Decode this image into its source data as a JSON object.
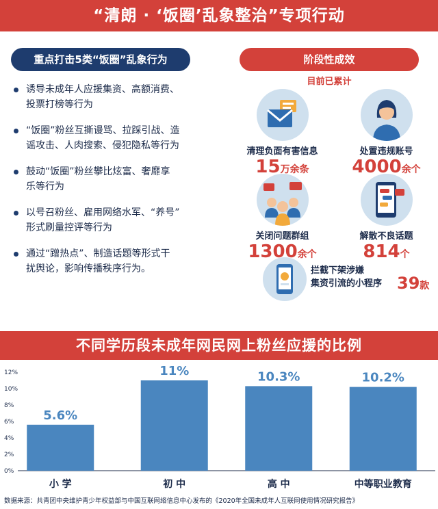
{
  "header": {
    "title": "“清朗 · ‘饭圈’乱象整治”专项行动"
  },
  "left": {
    "heading": "重点打击5类“饭圈”乱象行为",
    "items": [
      {
        "line1": "诱导未成年人应援集资、高额消费、",
        "line2": "投票打榜等行为"
      },
      {
        "line1": "“饭圈”粉丝互撕谩骂、拉踩引战、造",
        "line2": "谣攻击、人肉搜索、侵犯隐私等行为"
      },
      {
        "line1": "鼓动“饭圈”粉丝攀比炫富、奢靡享",
        "line2": "乐等行为"
      },
      {
        "line1": "以号召粉丝、雇用网络水军、“养号”",
        "line2": "形式刷量控评等行为"
      },
      {
        "line1": "通过“蹭热点”、制造话题等形式干",
        "line2": "扰舆论，影响传播秩序行为。"
      }
    ]
  },
  "right": {
    "heading": "阶段性成效",
    "subheading": "目前已累计",
    "stats": [
      {
        "label": "清理负面有害信息",
        "value": "15",
        "unit": "万余条",
        "icon": "message-envelope-icon"
      },
      {
        "label": "处置违规账号",
        "value": "4000",
        "unit": "余个",
        "icon": "person-avatar-icon"
      },
      {
        "label": "关闭问题群组",
        "value": "1300",
        "unit": "余个",
        "icon": "group-chat-icon"
      },
      {
        "label": "解散不良话题",
        "value": "814",
        "unit": "个",
        "icon": "phone-chat-icon"
      }
    ],
    "miniapp": {
      "line1": "拦截下架涉嫌",
      "line2": "集资引流的小程序",
      "value": "39",
      "unit": "款",
      "icon": "phone-app-icon"
    }
  },
  "chart_data": {
    "type": "bar",
    "title": "不同学历段未成年网民网上粉丝应援的比例",
    "categories": [
      "小 学",
      "初 中",
      "高 中",
      "中等职业教育"
    ],
    "values": [
      5.6,
      11,
      10.3,
      10.2
    ],
    "value_labels": [
      "5.6%",
      "11%",
      "10.3%",
      "10.2%"
    ],
    "y_ticks": [
      "0%",
      "2%",
      "4%",
      "6%",
      "8%",
      "10%",
      "12%"
    ],
    "ylim": [
      0,
      12
    ],
    "grid": false,
    "bar_color": "#4a86bf",
    "label_color": "#4a86bf"
  },
  "footer": {
    "source": "数据来源：共青团中央维护青少年权益部与中国互联网络信息中心发布的《2020年全国未成年人互联网使用情况研究报告》"
  },
  "colors": {
    "red": "#d3413a",
    "navy": "#1e3c6e",
    "light_blue": "#cfe0ee",
    "bar": "#4a86bf"
  }
}
